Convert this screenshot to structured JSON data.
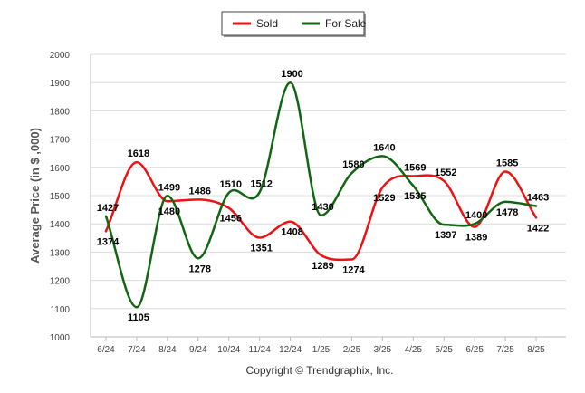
{
  "chart_data": {
    "type": "line",
    "ylabel": "Average Price (in $ ,000)",
    "xlabel": "",
    "ylim": [
      1000,
      2000
    ],
    "yticks": [
      1000,
      1100,
      1200,
      1300,
      1400,
      1500,
      1600,
      1700,
      1800,
      1900,
      2000
    ],
    "grid": true,
    "legend_position": "top-center",
    "categories": [
      "6/24",
      "7/24",
      "8/24",
      "9/24",
      "10/24",
      "11/24",
      "12/24",
      "1/25",
      "2/25",
      "3/25",
      "4/25",
      "5/25",
      "6/25",
      "7/25",
      "8/25"
    ],
    "series": [
      {
        "name": "Sold",
        "color": "#ee1111",
        "values": [
          1374,
          1618,
          1480,
          1486,
          1456,
          1351,
          1408,
          1289,
          1274,
          1529,
          1569,
          1552,
          1389,
          1585,
          1422
        ]
      },
      {
        "name": "For Sale",
        "color": "#116611",
        "values": [
          1427,
          1105,
          1499,
          1278,
          1510,
          1512,
          1900,
          1430,
          1580,
          1640,
          1535,
          1397,
          1400,
          1478,
          1463
        ]
      }
    ]
  },
  "footer": {
    "copyright": "Copyright © Trendgraphix, Inc."
  }
}
